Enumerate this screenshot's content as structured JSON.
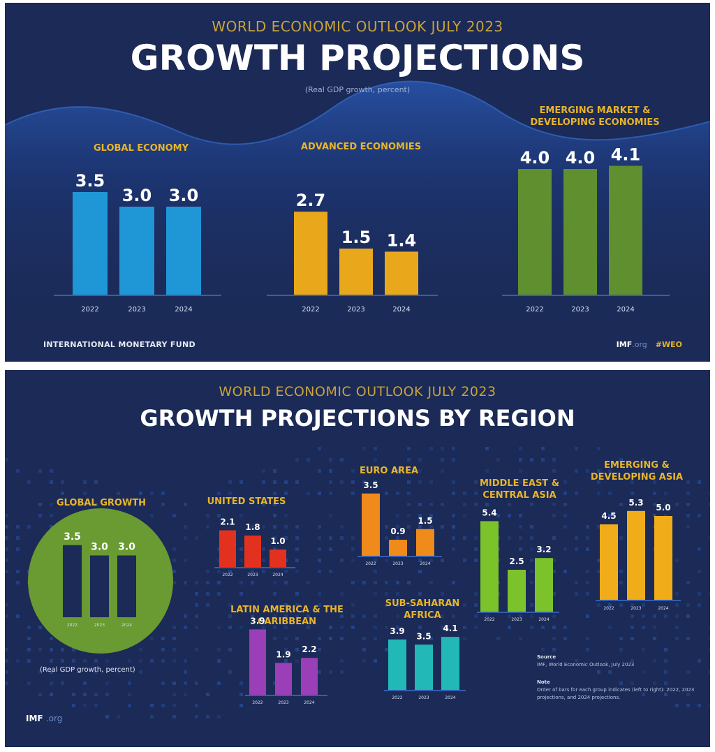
{
  "top": {
    "kicker": "WORLD ECONOMIC OUTLOOK JULY 2023",
    "title": "GROWTH PROJECTIONS",
    "subtitle": "(Real GDP growth, percent)",
    "footer_left": "INTERNATIONAL MONETARY FUND",
    "footer_imf": "IMF",
    "footer_org": ".org",
    "footer_tag": "#WEO"
  },
  "bottom": {
    "kicker": "WORLD ECONOMIC OUTLOOK JULY 2023",
    "title": "GROWTH PROJECTIONS BY REGION",
    "global_caption": "(Real GDP growth, percent)",
    "source_heading": "Source",
    "source_text": "IMF, World Economic Outlook, July 2023",
    "note_heading": "Note",
    "note_text": "Order of bars for each group indicates (left to right): 2022, 2023 projections, and 2024 projections.",
    "logo_imf": "IMF",
    "logo_org": ".org"
  },
  "chart_data": [
    {
      "type": "bar",
      "title": "GLOBAL ECONOMY",
      "categories": [
        "2022",
        "2023",
        "2024"
      ],
      "values": [
        3.5,
        3.0,
        3.0
      ],
      "color": "#1f96d6",
      "ylabel": "Real GDP growth, percent"
    },
    {
      "type": "bar",
      "title": "ADVANCED ECONOMIES",
      "categories": [
        "2022",
        "2023",
        "2024"
      ],
      "values": [
        2.7,
        1.5,
        1.4
      ],
      "color": "#e9a81c",
      "ylabel": "Real GDP growth, percent"
    },
    {
      "type": "bar",
      "title": "EMERGING MARKET & DEVELOPING ECONOMIES",
      "title_lines": [
        "EMERGING MARKET &",
        "DEVELOPING ECONOMIES"
      ],
      "categories": [
        "2022",
        "2023",
        "2024"
      ],
      "values": [
        4.0,
        4.0,
        4.1
      ],
      "color": "#5f8f2e",
      "ylabel": "Real GDP growth, percent"
    },
    {
      "type": "bar",
      "title": "GLOBAL GROWTH",
      "categories": [
        "2022",
        "2023",
        "2024"
      ],
      "values": [
        3.5,
        3.0,
        3.0
      ],
      "color": "#1b2a56",
      "background_color": "#6a9a32"
    },
    {
      "type": "bar",
      "title": "UNITED STATES",
      "categories": [
        "2022",
        "2023",
        "2024"
      ],
      "values": [
        2.1,
        1.8,
        1.0
      ],
      "color": "#e2321f"
    },
    {
      "type": "bar",
      "title": "EURO AREA",
      "categories": [
        "2022",
        "2023",
        "2024"
      ],
      "values": [
        3.5,
        0.9,
        1.5
      ],
      "color": "#f08a1a"
    },
    {
      "type": "bar",
      "title": "MIDDLE EAST & CENTRAL ASIA",
      "title_lines": [
        "MIDDLE EAST &",
        "CENTRAL ASIA"
      ],
      "categories": [
        "2022",
        "2023",
        "2024"
      ],
      "values": [
        5.4,
        2.5,
        3.2
      ],
      "color": "#7cc22a"
    },
    {
      "type": "bar",
      "title": "EMERGING & DEVELOPING ASIA",
      "title_lines": [
        "EMERGING &",
        "DEVELOPING ASIA"
      ],
      "categories": [
        "2022",
        "2023",
        "2024"
      ],
      "values": [
        4.5,
        5.3,
        5.0
      ],
      "color": "#f0ac19"
    },
    {
      "type": "bar",
      "title": "LATIN AMERICA & THE CARIBBEAN",
      "title_lines": [
        "LATIN AMERICA & THE",
        "CARIBBEAN"
      ],
      "categories": [
        "2022",
        "2023",
        "2024"
      ],
      "values": [
        3.9,
        1.9,
        2.2
      ],
      "color": "#9a3fb8"
    },
    {
      "type": "bar",
      "title": "SUB-SAHARAN AFRICA",
      "title_lines": [
        "SUB-SAHARAN",
        "AFRICA"
      ],
      "categories": [
        "2022",
        "2023",
        "2024"
      ],
      "values": [
        3.9,
        3.5,
        4.1
      ],
      "color": "#22b8b8"
    }
  ]
}
